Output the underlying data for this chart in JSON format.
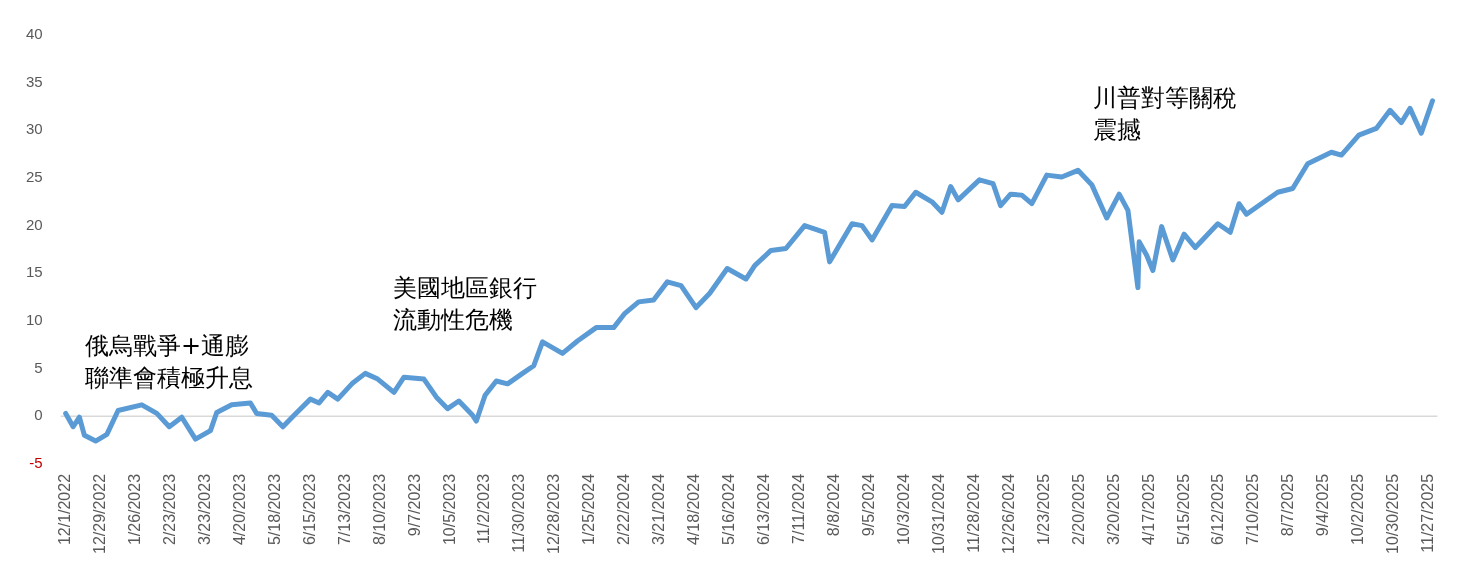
{
  "chart_data": {
    "type": "line",
    "x": [
      "2022-12-01",
      "2022-12-07",
      "2022-12-12",
      "2022-12-16",
      "2022-12-25",
      "2023-01-03",
      "2023-01-12",
      "2023-01-31",
      "2023-02-12",
      "2023-02-22",
      "2023-03-04",
      "2023-03-15",
      "2023-03-27",
      "2023-04-01",
      "2023-04-13",
      "2023-04-28",
      "2023-05-03",
      "2023-05-15",
      "2023-05-24",
      "2023-06-02",
      "2023-06-15",
      "2023-06-22",
      "2023-06-29",
      "2023-07-07",
      "2023-07-19",
      "2023-07-29",
      "2023-08-08",
      "2023-08-21",
      "2023-08-29",
      "2023-09-14",
      "2023-09-24",
      "2023-10-03",
      "2023-10-12",
      "2023-10-23",
      "2023-10-26",
      "2023-11-02",
      "2023-11-11",
      "2023-11-20",
      "2023-12-02",
      "2023-12-11",
      "2023-12-18",
      "2024-01-03",
      "2024-01-15",
      "2024-01-30",
      "2024-02-13",
      "2024-02-22",
      "2024-03-04",
      "2024-03-16",
      "2024-03-27",
      "2024-04-07",
      "2024-04-19",
      "2024-04-30",
      "2024-05-14",
      "2024-05-29",
      "2024-06-05",
      "2024-06-18",
      "2024-06-30",
      "2024-07-15",
      "2024-07-31",
      "2024-08-04",
      "2024-08-22",
      "2024-08-30",
      "2024-09-07",
      "2024-09-23",
      "2024-10-03",
      "2024-10-12",
      "2024-10-25",
      "2024-11-02",
      "2024-11-09",
      "2024-11-15",
      "2024-12-02",
      "2024-12-13",
      "2024-12-19",
      "2024-12-27",
      "2025-01-05",
      "2025-01-13",
      "2025-01-25",
      "2025-02-06",
      "2025-02-19",
      "2025-03-02",
      "2025-03-14",
      "2025-03-24",
      "2025-03-31",
      "2025-04-08",
      "2025-04-09",
      "2025-04-15",
      "2025-04-20",
      "2025-04-27",
      "2025-05-06",
      "2025-05-15",
      "2025-05-24",
      "2025-06-11",
      "2025-06-21",
      "2025-06-28",
      "2025-07-04",
      "2025-07-29",
      "2025-08-10",
      "2025-08-22",
      "2025-09-10",
      "2025-09-18",
      "2025-10-02",
      "2025-10-16",
      "2025-10-27",
      "2025-11-05",
      "2025-11-12",
      "2025-11-21",
      "2025-11-30"
    ],
    "series": [
      {
        "color": "#5b9bd5",
        "values": [
          0.3,
          -1.1,
          -0.1,
          -2,
          -2.6,
          -1.9,
          0.6,
          1.2,
          0.3,
          -1.1,
          -0.1,
          -2.4,
          -1.5,
          0.4,
          1.2,
          1.4,
          0.3,
          0.1,
          -1.1,
          0.1,
          1.8,
          1.4,
          2.5,
          1.8,
          3.5,
          4.5,
          3.9,
          2.5,
          4.1,
          3.9,
          2,
          0.8,
          1.6,
          0.1,
          -0.5,
          2.2,
          3.7,
          3.4,
          4.5,
          5.3,
          7.8,
          6.6,
          7.9,
          9.3,
          9.3,
          10.8,
          12,
          12.2,
          14.1,
          13.7,
          11.4,
          12.9,
          15.5,
          14.4,
          15.8,
          17.4,
          17.6,
          20,
          19.3,
          16.2,
          20.2,
          20,
          18.5,
          22.1,
          22,
          23.5,
          22.5,
          21.4,
          24.1,
          22.7,
          24.8,
          24.4,
          22.1,
          23.3,
          23.2,
          22.3,
          25.3,
          25.1,
          25.8,
          24.3,
          20.8,
          23.3,
          21.6,
          13.5,
          18.3,
          16.9,
          15.3,
          19.9,
          16.4,
          19.1,
          17.7,
          20.2,
          19.3,
          22.3,
          21.2,
          23.5,
          23.9,
          26.5,
          27.7,
          27.4,
          29.5,
          30.2,
          32.1,
          30.8,
          32.3,
          29.7,
          33.1
        ]
      }
    ],
    "xlim": [
      "2022-11-27",
      "2025-12-04"
    ],
    "xticks": [
      {
        "value": "2022-12-01",
        "label": "12/1/2022"
      },
      {
        "value": "2022-12-29",
        "label": "12/29/2022"
      },
      {
        "value": "2023-01-26",
        "label": "1/26/2023"
      },
      {
        "value": "2023-02-23",
        "label": "2/23/2023"
      },
      {
        "value": "2023-03-23",
        "label": "3/23/2023"
      },
      {
        "value": "2023-04-20",
        "label": "4/20/2023"
      },
      {
        "value": "2023-05-18",
        "label": "5/18/2023"
      },
      {
        "value": "2023-06-15",
        "label": "6/15/2023"
      },
      {
        "value": "2023-07-13",
        "label": "7/13/2023"
      },
      {
        "value": "2023-08-10",
        "label": "8/10/2023"
      },
      {
        "value": "2023-09-07",
        "label": "9/7/2023"
      },
      {
        "value": "2023-10-05",
        "label": "10/5/2023"
      },
      {
        "value": "2023-11-02",
        "label": "11/2/2023"
      },
      {
        "value": "2023-11-30",
        "label": "11/30/2023"
      },
      {
        "value": "2023-12-28",
        "label": "12/28/2023"
      },
      {
        "value": "2024-01-25",
        "label": "1/25/2024"
      },
      {
        "value": "2024-02-22",
        "label": "2/22/2024"
      },
      {
        "value": "2024-03-21",
        "label": "3/21/2024"
      },
      {
        "value": "2024-04-18",
        "label": "4/18/2024"
      },
      {
        "value": "2024-05-16",
        "label": "5/16/2024"
      },
      {
        "value": "2024-06-13",
        "label": "6/13/2024"
      },
      {
        "value": "2024-07-11",
        "label": "7/11/2024"
      },
      {
        "value": "2024-08-08",
        "label": "8/8/2024"
      },
      {
        "value": "2024-09-05",
        "label": "9/5/2024"
      },
      {
        "value": "2024-10-03",
        "label": "10/3/2024"
      },
      {
        "value": "2024-10-31",
        "label": "10/31/2024"
      },
      {
        "value": "2024-11-28",
        "label": "11/28/2024"
      },
      {
        "value": "2024-12-26",
        "label": "12/26/2024"
      },
      {
        "value": "2025-01-23",
        "label": "1/23/2025"
      },
      {
        "value": "2025-02-20",
        "label": "2/20/2025"
      },
      {
        "value": "2025-03-20",
        "label": "3/20/2025"
      },
      {
        "value": "2025-04-17",
        "label": "4/17/2025"
      },
      {
        "value": "2025-05-15",
        "label": "5/15/2025"
      },
      {
        "value": "2025-06-12",
        "label": "6/12/2025"
      },
      {
        "value": "2025-07-10",
        "label": "7/10/2025"
      },
      {
        "value": "2025-08-07",
        "label": "8/7/2025"
      },
      {
        "value": "2025-09-04",
        "label": "9/4/2025"
      },
      {
        "value": "2025-10-02",
        "label": "10/2/2025"
      },
      {
        "value": "2025-10-30",
        "label": "10/30/2025"
      },
      {
        "value": "2025-11-27",
        "label": "11/27/2025"
      }
    ],
    "ylim": [
      -5,
      40
    ],
    "yticks": [
      -5,
      0,
      5,
      10,
      15,
      20,
      25,
      30,
      35,
      40
    ],
    "grid": false,
    "ref_lines": [
      {
        "axis": "y",
        "value": 0,
        "color": "#d9d9d9"
      }
    ],
    "annotations": [
      "俄烏戰爭+通膨聯準會積極升息",
      "美國地區銀行流動性危機",
      "川普對等關稅震撼"
    ]
  }
}
